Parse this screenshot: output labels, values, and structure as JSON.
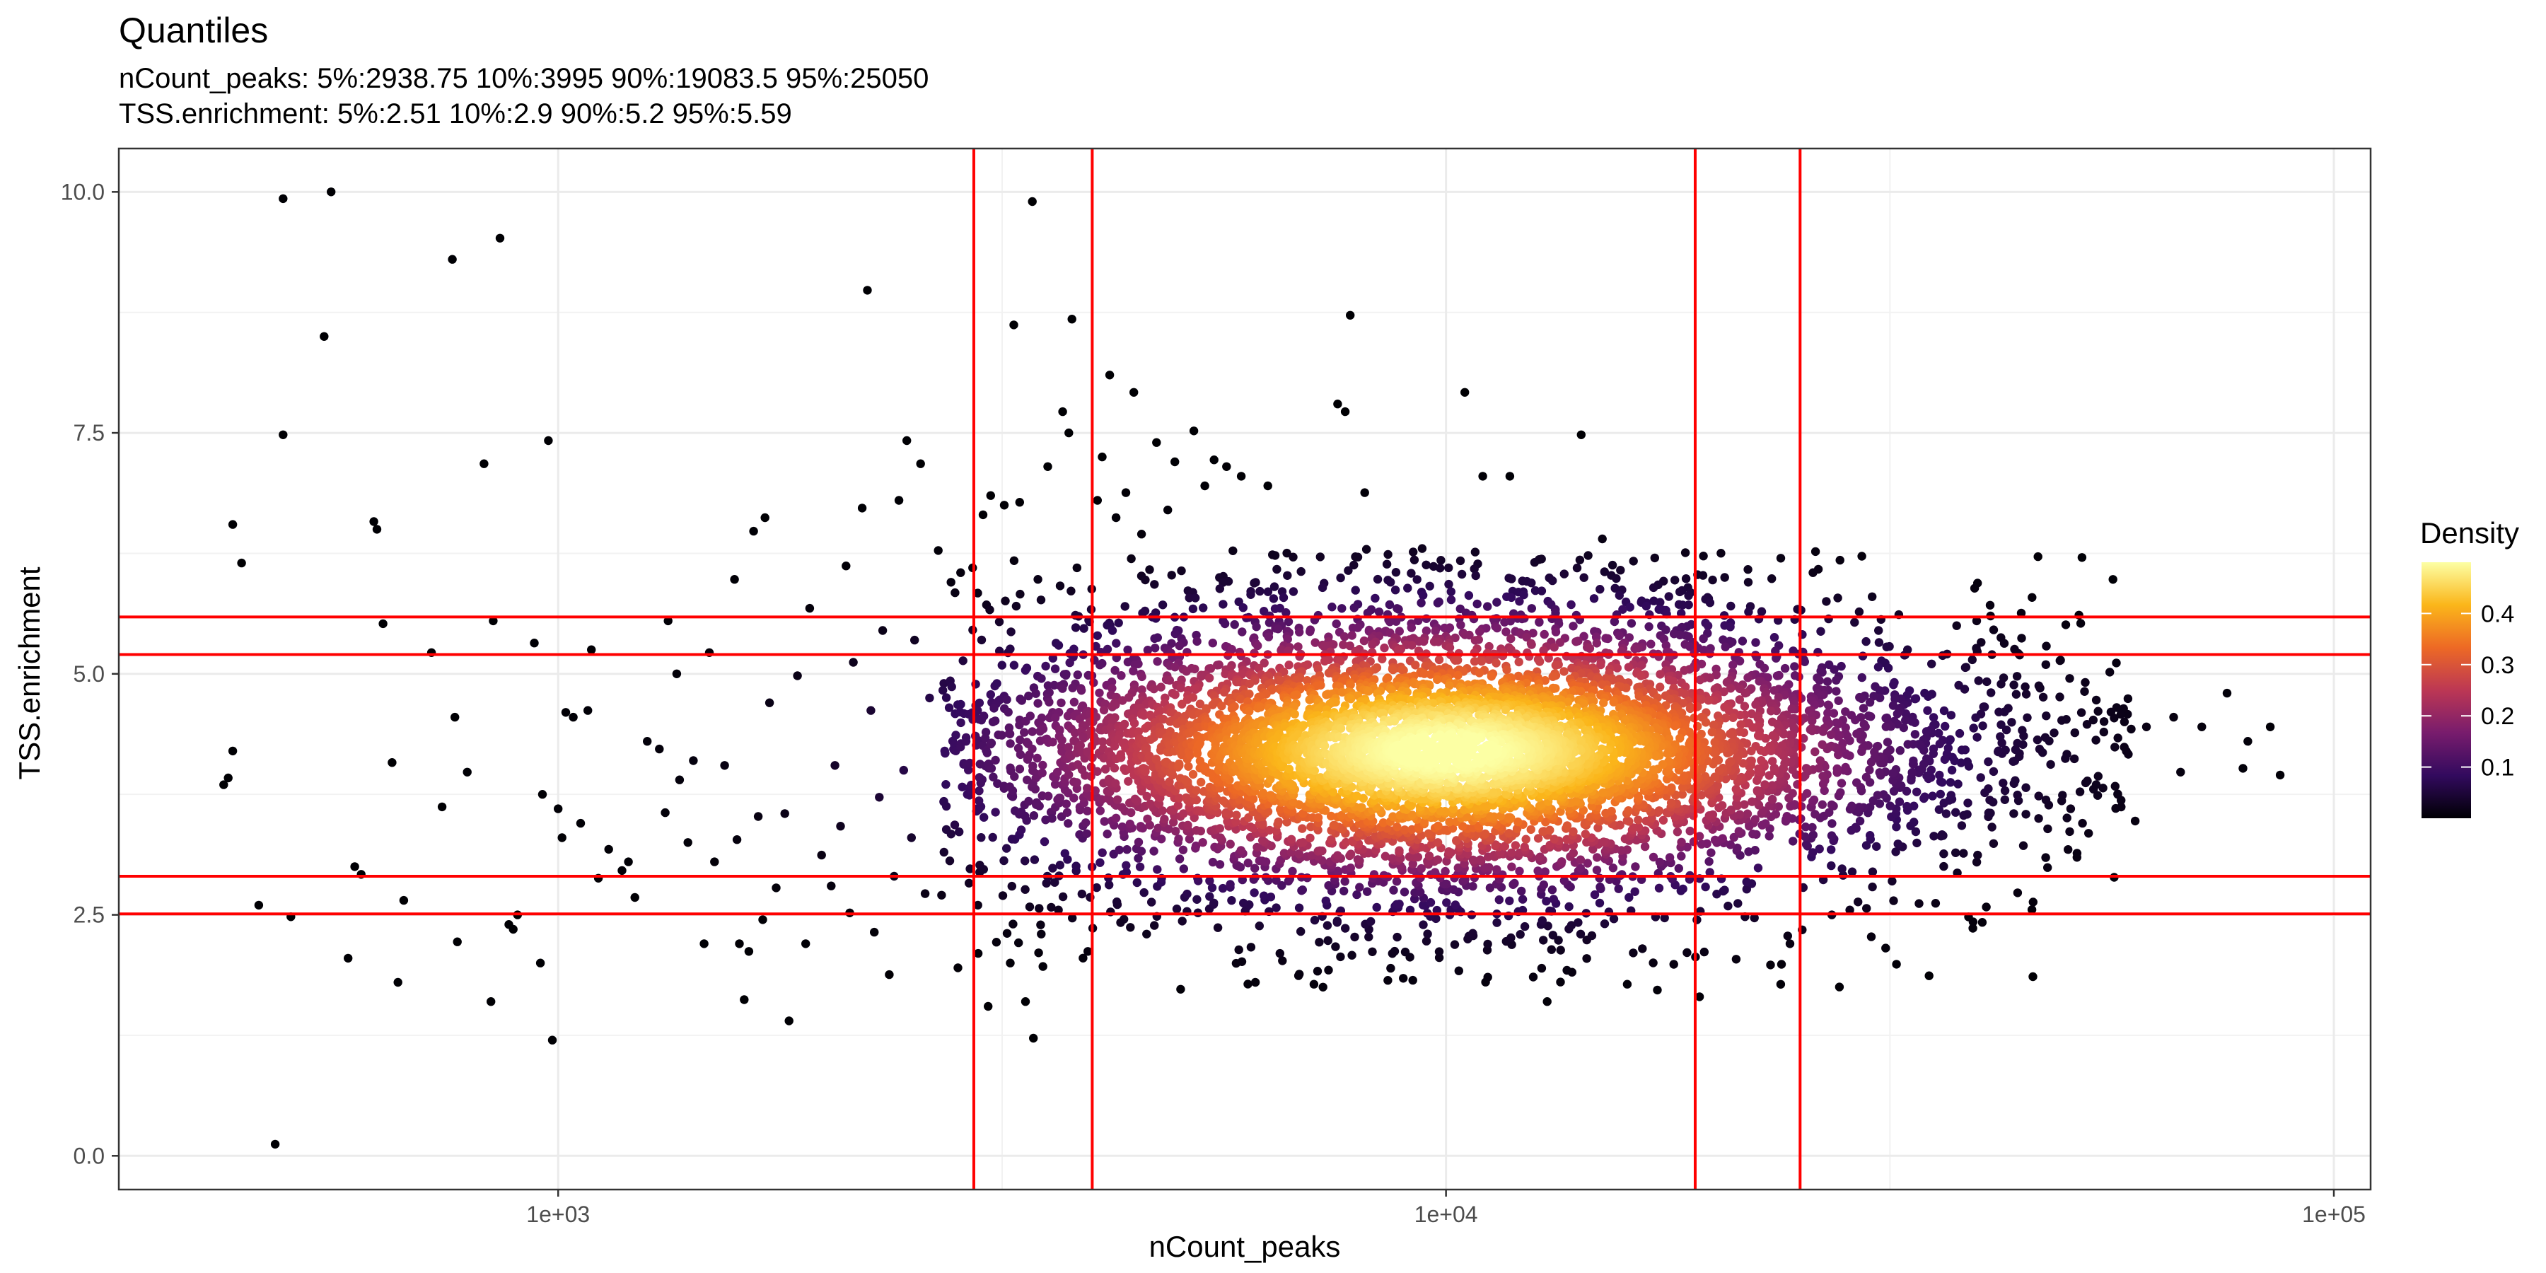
{
  "chart_data": {
    "type": "scatter",
    "title": "Quantiles",
    "subtitle_lines": [
      "nCount_peaks: 5%:2938.75 10%:3995 90%:19083.5 95%:25050",
      "TSS.enrichment: 5%:2.51 10%:2.9 90%:5.2 95%:5.59"
    ],
    "xlabel": "nCount_peaks",
    "ylabel": "TSS.enrichment",
    "x_scale": "log10",
    "xlim": [
      320,
      110000
    ],
    "ylim": [
      -0.35,
      10.45
    ],
    "x_ticks": [
      1000,
      10000,
      100000
    ],
    "x_tick_labels": [
      "1e+03",
      "1e+04",
      "1e+05"
    ],
    "y_ticks": [
      0,
      2.5,
      5,
      7.5,
      10
    ],
    "y_tick_labels": [
      "0.0",
      "2.5",
      "5.0",
      "7.5",
      "10.0"
    ],
    "grid": true,
    "vlines": [
      2938.75,
      3995,
      19083.5,
      25050
    ],
    "hlines": [
      2.51,
      2.9,
      5.2,
      5.59
    ],
    "line_color": "#ff0000",
    "legend": {
      "title": "Density",
      "position": "right",
      "labels": [
        "0.4",
        "0.3",
        "0.2",
        "0.1"
      ],
      "values": [
        0.4,
        0.3,
        0.2,
        0.1
      ],
      "range": [
        0,
        0.5
      ],
      "colors": [
        "#000004",
        "#320a5e",
        "#781c6d",
        "#bc3754",
        "#ed6925",
        "#fbb61a",
        "#fcffa4"
      ]
    },
    "points": [
      [
        430,
        6.55
      ],
      [
        440,
        6.15
      ],
      [
        420,
        3.85
      ],
      [
        425,
        3.92
      ],
      [
        430,
        4.2
      ],
      [
        460,
        2.6
      ],
      [
        480,
        0.12
      ],
      [
        490,
        9.93
      ],
      [
        490,
        7.48
      ],
      [
        500,
        2.48
      ],
      [
        545,
        8.5
      ],
      [
        555,
        10.0
      ],
      [
        580,
        2.05
      ],
      [
        590,
        3.0
      ],
      [
        600,
        2.92
      ],
      [
        620,
        6.58
      ],
      [
        625,
        6.5
      ],
      [
        635,
        5.52
      ],
      [
        650,
        4.08
      ],
      [
        660,
        1.8
      ],
      [
        670,
        2.65
      ],
      [
        720,
        5.22
      ],
      [
        740,
        3.62
      ],
      [
        760,
        9.3
      ],
      [
        765,
        4.55
      ],
      [
        770,
        2.22
      ],
      [
        790,
        3.98
      ],
      [
        825,
        7.18
      ],
      [
        840,
        1.6
      ],
      [
        845,
        5.55
      ],
      [
        860,
        9.52
      ],
      [
        880,
        2.4
      ],
      [
        890,
        2.35
      ],
      [
        900,
        2.5
      ],
      [
        940,
        5.32
      ],
      [
        955,
        2.0
      ],
      [
        960,
        3.75
      ],
      [
        975,
        7.42
      ],
      [
        985,
        1.2
      ],
      [
        1000,
        3.6
      ],
      [
        1010,
        3.3
      ],
      [
        1020,
        4.6
      ],
      [
        1040,
        4.55
      ],
      [
        1060,
        3.45
      ],
      [
        1080,
        4.62
      ],
      [
        1090,
        5.25
      ],
      [
        1110,
        2.88
      ],
      [
        1140,
        3.18
      ],
      [
        1180,
        2.96
      ],
      [
        1200,
        3.05
      ],
      [
        1220,
        2.68
      ],
      [
        1260,
        4.3
      ],
      [
        1300,
        4.22
      ],
      [
        1320,
        3.56
      ],
      [
        1330,
        5.55
      ],
      [
        1360,
        5.0
      ],
      [
        1370,
        3.9
      ],
      [
        1400,
        3.25
      ],
      [
        1420,
        4.1
      ],
      [
        1460,
        2.2
      ],
      [
        1480,
        5.22
      ],
      [
        1500,
        3.05
      ],
      [
        1540,
        4.05
      ],
      [
        1580,
        5.98
      ],
      [
        1590,
        3.28
      ],
      [
        1600,
        2.2
      ],
      [
        1620,
        1.62
      ],
      [
        1640,
        2.12
      ],
      [
        1660,
        6.48
      ],
      [
        1680,
        3.52
      ],
      [
        1700,
        2.45
      ],
      [
        1710,
        6.62
      ],
      [
        1730,
        4.7
      ],
      [
        1760,
        2.78
      ],
      [
        1800,
        3.55
      ],
      [
        1820,
        1.4
      ],
      [
        1860,
        4.98
      ],
      [
        1900,
        2.2
      ],
      [
        1920,
        5.68
      ],
      [
        1980,
        3.12
      ],
      [
        2030,
        2.8
      ],
      [
        2050,
        4.05
      ],
      [
        2080,
        3.42
      ],
      [
        2110,
        6.12
      ],
      [
        2130,
        2.52
      ],
      [
        2150,
        5.12
      ],
      [
        2200,
        6.72
      ],
      [
        2230,
        8.98
      ],
      [
        2250,
        4.62
      ],
      [
        2270,
        2.32
      ],
      [
        2300,
        3.72
      ],
      [
        2320,
        5.45
      ],
      [
        2360,
        1.88
      ],
      [
        2390,
        2.9
      ],
      [
        2420,
        6.8
      ],
      [
        2450,
        4.0
      ],
      [
        2470,
        7.42
      ],
      [
        2500,
        3.3
      ],
      [
        2520,
        5.35
      ],
      [
        2560,
        7.18
      ],
      [
        2590,
        2.72
      ],
      [
        2620,
        4.75
      ],
      [
        2680,
        6.28
      ],
      [
        2720,
        3.15
      ],
      [
        2770,
        5.95
      ],
      [
        2820,
        1.95
      ],
      [
        2840,
        6.05
      ],
      [
        2880,
        4.3
      ],
      [
        2930,
        6.1
      ],
      [
        2970,
        2.6
      ],
      [
        3010,
        6.65
      ],
      [
        3050,
        1.55
      ],
      [
        3070,
        6.85
      ],
      [
        3120,
        4.9
      ],
      [
        3180,
        6.75
      ],
      [
        3230,
        2.0
      ],
      [
        3260,
        8.62
      ],
      [
        3310,
        6.78
      ],
      [
        3360,
        1.6
      ],
      [
        3420,
        9.9
      ],
      [
        3430,
        1.22
      ],
      [
        3470,
        5.98
      ],
      [
        3500,
        2.3
      ],
      [
        3560,
        7.15
      ],
      [
        3600,
        3.5
      ],
      [
        3660,
        2.55
      ],
      [
        3700,
        7.72
      ],
      [
        3760,
        7.5
      ],
      [
        3790,
        8.68
      ],
      [
        3840,
        6.1
      ],
      [
        3900,
        4.35
      ],
      [
        3950,
        2.12
      ],
      [
        3990,
        5.88
      ],
      [
        4050,
        6.8
      ],
      [
        4100,
        7.25
      ],
      [
        4180,
        8.1
      ],
      [
        4250,
        6.62
      ],
      [
        4300,
        2.42
      ],
      [
        4360,
        6.88
      ],
      [
        4450,
        7.92
      ],
      [
        4540,
        6.45
      ],
      [
        4600,
        2.3
      ],
      [
        4720,
        7.4
      ],
      [
        4860,
        6.7
      ],
      [
        4950,
        7.2
      ],
      [
        5200,
        7.52
      ],
      [
        5350,
        6.95
      ],
      [
        5480,
        7.22
      ],
      [
        5660,
        7.15
      ],
      [
        5880,
        7.05
      ],
      [
        6100,
        1.8
      ],
      [
        6300,
        6.95
      ],
      [
        6500,
        2.1
      ],
      [
        7100,
        1.78
      ],
      [
        7550,
        7.8
      ],
      [
        7700,
        7.72
      ],
      [
        7800,
        8.72
      ],
      [
        8100,
        6.88
      ],
      [
        8600,
        1.82
      ],
      [
        9400,
        6.3
      ],
      [
        10500,
        7.92
      ],
      [
        11000,
        7.05
      ],
      [
        11800,
        7.05
      ],
      [
        13000,
        1.6
      ],
      [
        14200,
        7.48
      ],
      [
        15000,
        6.4
      ],
      [
        16000,
        1.78
      ],
      [
        17300,
        1.72
      ],
      [
        18300,
        5.72
      ],
      [
        19300,
        1.65
      ],
      [
        20600,
        6.0
      ],
      [
        21900,
        5.95
      ],
      [
        23200,
        1.98
      ],
      [
        24400,
        2.2
      ],
      [
        25900,
        6.05
      ],
      [
        27200,
        2.5
      ],
      [
        28500,
        2.55
      ],
      [
        29400,
        6.22
      ],
      [
        30200,
        5.8
      ],
      [
        30700,
        5.45
      ],
      [
        31800,
        2.85
      ],
      [
        33100,
        5.25
      ],
      [
        35600,
        2.62
      ],
      [
        37600,
        5.5
      ],
      [
        39600,
        5.55
      ],
      [
        41200,
        5.2
      ],
      [
        43600,
        3.55
      ],
      [
        46500,
        3.5
      ],
      [
        52100,
        3.45
      ],
      [
        57100,
        3.75
      ],
      [
        61500,
        4.45
      ],
      [
        66000,
        4.55
      ],
      [
        71000,
        4.45
      ],
      [
        75800,
        4.8
      ],
      [
        80000,
        4.3
      ],
      [
        84800,
        4.45
      ],
      [
        87000,
        3.95
      ],
      [
        79000,
        4.02
      ],
      [
        67200,
        3.98
      ]
    ],
    "density_cluster": {
      "center": [
        10000,
        4.2
      ],
      "spread_log10_x": [
        0.17,
        0.5
      ],
      "spread_y": [
        0.38,
        1.35
      ],
      "extent_x": [
        2700,
        60000
      ],
      "extent_y": [
        1.7,
        6.3
      ]
    }
  }
}
